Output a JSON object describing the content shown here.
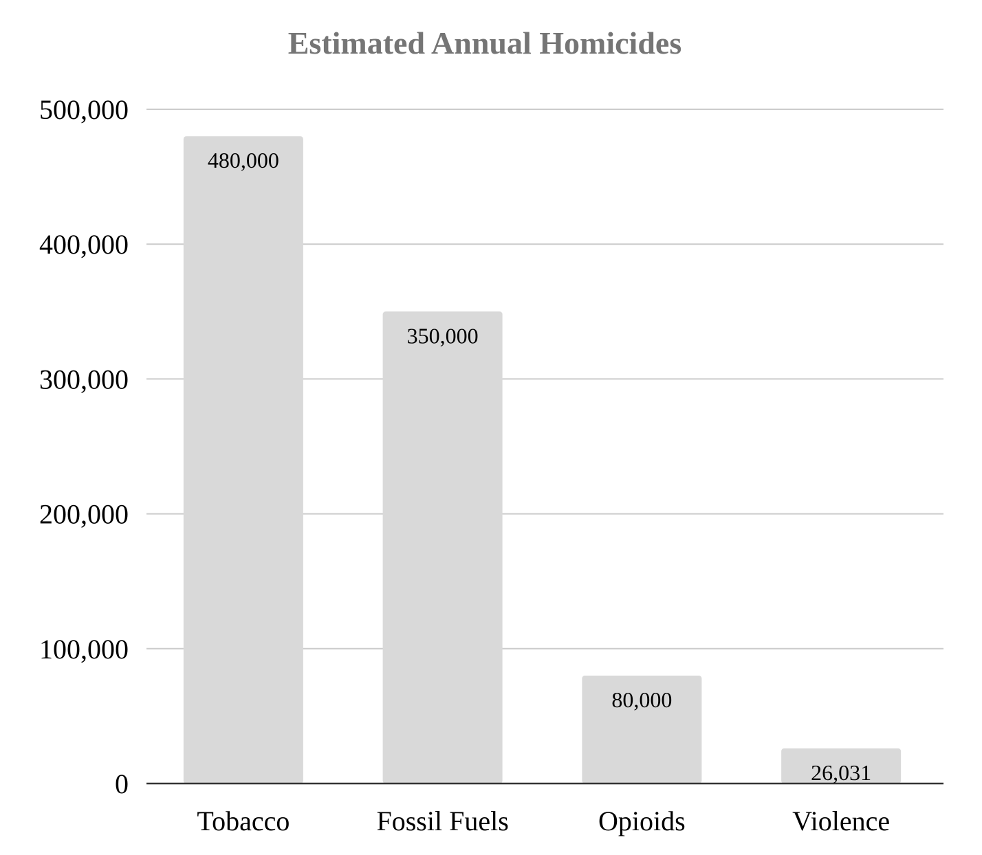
{
  "chart_data": {
    "type": "bar",
    "title": "Estimated Annual Homicides",
    "xlabel": "",
    "ylabel": "",
    "categories": [
      "Tobacco",
      "Fossil Fuels",
      "Opioids",
      "Violence"
    ],
    "values": [
      480000,
      350000,
      80000,
      26031
    ],
    "data_labels": [
      "480,000",
      "350,000",
      "80,000",
      "26,031"
    ],
    "y_ticks": [
      0,
      100000,
      200000,
      300000,
      400000,
      500000
    ],
    "y_tick_labels": [
      "0",
      "100,000",
      "200,000",
      "300,000",
      "400,000",
      "500,000"
    ],
    "ylim": [
      0,
      500000
    ],
    "grid": true,
    "legend": "none",
    "colors": {
      "bar": "#d9d9d9",
      "title": "#757575",
      "gridline": "#cccccc",
      "baseline": "#333333"
    }
  }
}
